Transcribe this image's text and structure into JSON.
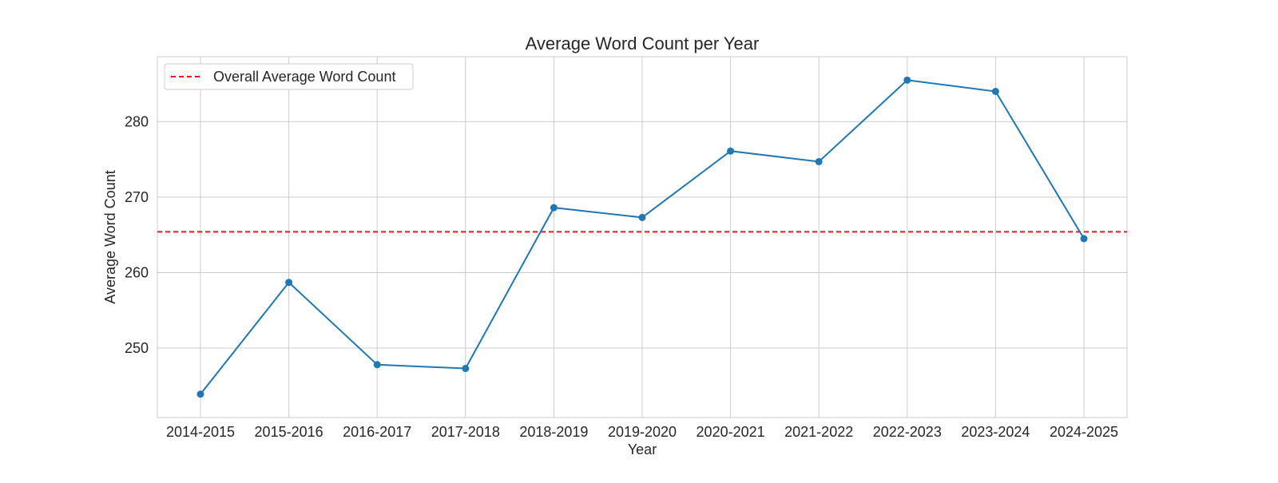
{
  "chart_data": {
    "type": "line",
    "title": "Average Word Count per Year",
    "xlabel": "Year",
    "ylabel": "Average Word Count",
    "categories": [
      "2014-2015",
      "2015-2016",
      "2016-2017",
      "2017-2018",
      "2018-2019",
      "2019-2020",
      "2020-2021",
      "2021-2022",
      "2022-2023",
      "2023-2024",
      "2024-2025"
    ],
    "series": [
      {
        "values": [
          243.9,
          258.7,
          247.8,
          247.3,
          268.6,
          267.3,
          276.1,
          274.7,
          285.5,
          284.0,
          264.5
        ],
        "color": "#1f77b4",
        "marker": "circle"
      }
    ],
    "reference_line": {
      "label": "Overall Average Word Count",
      "value": 265.4,
      "color": "#e41a1c",
      "style": "dashed"
    },
    "yticks": [
      250,
      260,
      270,
      280
    ],
    "ylim": [
      240.8,
      288.6
    ],
    "grid": true,
    "legend_position": "top-left"
  }
}
